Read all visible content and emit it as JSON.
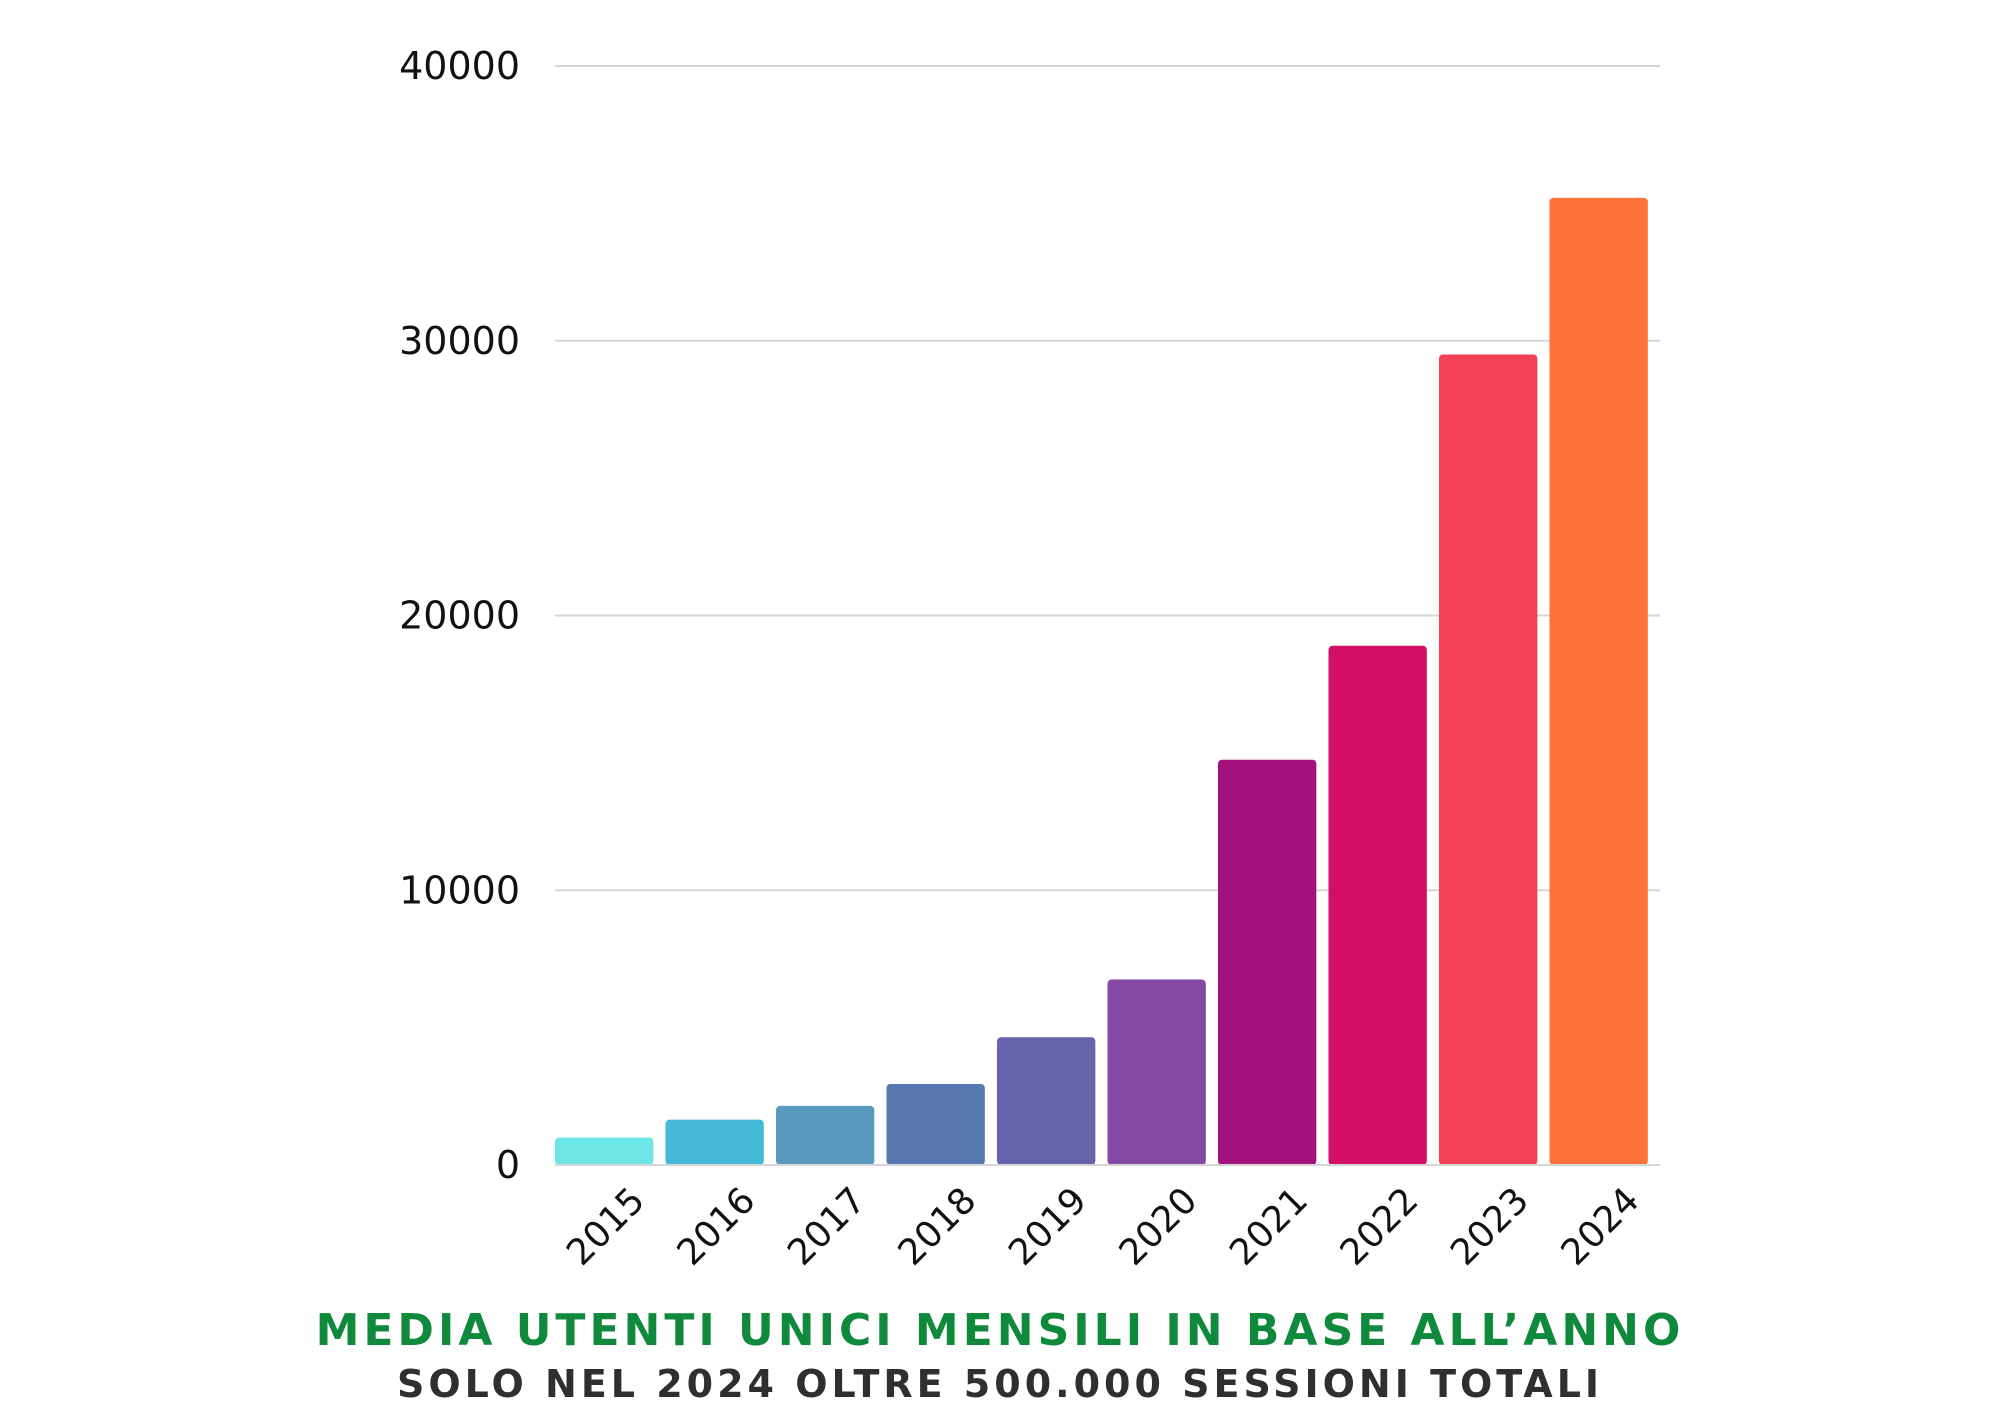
{
  "chart_data": {
    "type": "bar",
    "categories": [
      "2015",
      "2016",
      "2017",
      "2018",
      "2019",
      "2020",
      "2021",
      "2022",
      "2023",
      "2024"
    ],
    "values": [
      1000,
      1650,
      2150,
      2950,
      4650,
      6750,
      14750,
      18900,
      29500,
      35200
    ],
    "colors": [
      "#6ee6e6",
      "#45b9d8",
      "#5899bd",
      "#5878b0",
      "#6665ab",
      "#8449a3",
      "#a3117f",
      "#d10f64",
      "#f24154",
      "#fd7238"
    ],
    "yticks": [
      "0",
      "10000",
      "20000",
      "30000",
      "40000"
    ],
    "ylim": [
      0,
      40000
    ],
    "grid": true,
    "legend": "none"
  },
  "caption": {
    "title": "MEDIA UTENTI UNICI MENSILI IN BASE ALL’ANNO",
    "subtitle": "SOLO NEL 2024 OLTRE 500.000 SESSIONI TOTALI"
  }
}
